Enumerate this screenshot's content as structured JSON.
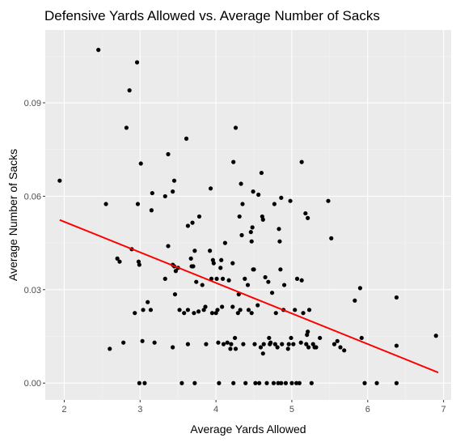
{
  "colors": {
    "panel": "#ebebeb",
    "grid_major": "#ffffff",
    "grid_minor": "#f4f4f4",
    "point": "#000000",
    "trend_line": "#ff0000",
    "tick_text": "#4d4d4d",
    "tick_mark": "#333333"
  },
  "chart_data": {
    "type": "scatter",
    "title": "Defensive Yards Allowed vs. Average Number of Sacks",
    "xlabel": "Average Yards Allowed",
    "ylabel": "Average Number of Sacks",
    "xlim": [
      1.75,
      7.1
    ],
    "ylim": [
      -0.0054,
      0.1134
    ],
    "x_ticks": [
      2,
      3,
      4,
      5,
      6,
      7
    ],
    "x_tick_labels": [
      "2",
      "3",
      "4",
      "5",
      "6",
      "7"
    ],
    "y_ticks": [
      0,
      0.03,
      0.06,
      0.09
    ],
    "y_tick_labels": [
      "0.00",
      "0.03",
      "0.06",
      "0.09"
    ],
    "grid": true,
    "legend": "none",
    "trend_line": {
      "x": [
        1.94,
        6.93
      ],
      "y": [
        0.0524,
        0.0034
      ]
    },
    "points": [
      [
        1.94,
        0.065
      ],
      [
        2.45,
        0.107
      ],
      [
        2.55,
        0.0575
      ],
      [
        2.6,
        0.011
      ],
      [
        2.7,
        0.04
      ],
      [
        2.73,
        0.039
      ],
      [
        2.78,
        0.013
      ],
      [
        2.82,
        0.082
      ],
      [
        2.86,
        0.094
      ],
      [
        2.89,
        0.043
      ],
      [
        2.93,
        0.0225
      ],
      [
        2.96,
        0.103
      ],
      [
        2.97,
        0.0575
      ],
      [
        2.98,
        0.039
      ],
      [
        2.99,
        0.038
      ],
      [
        2.99,
        0.0
      ],
      [
        3.01,
        0.0705
      ],
      [
        3.03,
        0.0135
      ],
      [
        3.04,
        0.0235
      ],
      [
        3.06,
        0.0
      ],
      [
        3.1,
        0.026
      ],
      [
        3.14,
        0.0235
      ],
      [
        3.15,
        0.0555
      ],
      [
        3.16,
        0.061
      ],
      [
        3.19,
        0.013
      ],
      [
        3.33,
        0.06
      ],
      [
        3.33,
        0.0335
      ],
      [
        3.37,
        0.0735
      ],
      [
        3.37,
        0.044
      ],
      [
        3.43,
        0.0615
      ],
      [
        3.43,
        0.0115
      ],
      [
        3.43,
        0.038
      ],
      [
        3.45,
        0.065
      ],
      [
        3.45,
        0.0375
      ],
      [
        3.46,
        0.0285
      ],
      [
        3.47,
        0.036
      ],
      [
        3.5,
        0.037
      ],
      [
        3.52,
        0.0235
      ],
      [
        3.55,
        0.0
      ],
      [
        3.58,
        0.0225
      ],
      [
        3.61,
        0.0785
      ],
      [
        3.63,
        0.0505
      ],
      [
        3.63,
        0.0235
      ],
      [
        3.63,
        0.0125
      ],
      [
        3.67,
        0.04
      ],
      [
        3.68,
        0.0375
      ],
      [
        3.69,
        0.0515
      ],
      [
        3.7,
        0.0375
      ],
      [
        3.71,
        0.0225
      ],
      [
        3.72,
        0.0
      ],
      [
        3.72,
        0.0425
      ],
      [
        3.74,
        0.0325
      ],
      [
        3.77,
        0.023
      ],
      [
        3.78,
        0.0535
      ],
      [
        3.82,
        0.0315
      ],
      [
        3.84,
        0.0235
      ],
      [
        3.86,
        0.0245
      ],
      [
        3.87,
        0.0125
      ],
      [
        3.92,
        0.0425
      ],
      [
        3.93,
        0.0625
      ],
      [
        3.94,
        0.0335
      ],
      [
        3.95,
        0.0225
      ],
      [
        3.96,
        0.0395
      ],
      [
        3.97,
        0.0385
      ],
      [
        4.0,
        0.0225
      ],
      [
        4.01,
        0.0335
      ],
      [
        4.02,
        0.0235
      ],
      [
        4.03,
        0.013
      ],
      [
        4.04,
        0.0
      ],
      [
        4.06,
        0.037
      ],
      [
        4.07,
        0.0395
      ],
      [
        4.08,
        0.0245
      ],
      [
        4.09,
        0.0335
      ],
      [
        4.1,
        0.0125
      ],
      [
        4.12,
        0.045
      ],
      [
        4.15,
        0.013
      ],
      [
        4.17,
        0.033
      ],
      [
        4.19,
        0.011
      ],
      [
        4.2,
        0.0125
      ],
      [
        4.22,
        0.0245
      ],
      [
        4.22,
        0.0385
      ],
      [
        4.23,
        0.0
      ],
      [
        4.23,
        0.071
      ],
      [
        4.25,
        0.0145
      ],
      [
        4.26,
        0.082
      ],
      [
        4.26,
        0.011
      ],
      [
        4.29,
        0.0225
      ],
      [
        4.3,
        0.0285
      ],
      [
        4.31,
        0.0535
      ],
      [
        4.32,
        0.0235
      ],
      [
        4.33,
        0.064
      ],
      [
        4.34,
        0.0475
      ],
      [
        4.35,
        0.0575
      ],
      [
        4.36,
        0.0125
      ],
      [
        4.38,
        0.0335
      ],
      [
        4.39,
        0.0
      ],
      [
        4.42,
        0.0315
      ],
      [
        4.43,
        0.0235
      ],
      [
        4.46,
        0.0485
      ],
      [
        4.47,
        0.0225
      ],
      [
        4.47,
        0.0455
      ],
      [
        4.48,
        0.05
      ],
      [
        4.49,
        0.0365
      ],
      [
        4.49,
        0.0615
      ],
      [
        4.5,
        0.0365
      ],
      [
        4.51,
        0.0125
      ],
      [
        4.52,
        0.0
      ],
      [
        4.55,
        0.025
      ],
      [
        4.56,
        0.0605
      ],
      [
        4.57,
        0.0
      ],
      [
        4.59,
        0.0115
      ],
      [
        4.6,
        0.0675
      ],
      [
        4.61,
        0.0535
      ],
      [
        4.62,
        0.0095
      ],
      [
        4.62,
        0.0525
      ],
      [
        4.63,
        0.0125
      ],
      [
        4.65,
        0.034
      ],
      [
        4.67,
        0.0
      ],
      [
        4.69,
        0.0325
      ],
      [
        4.7,
        0.0145
      ],
      [
        4.71,
        0.0125
      ],
      [
        4.72,
        0.013
      ],
      [
        4.74,
        0.029
      ],
      [
        4.76,
        0.0
      ],
      [
        4.77,
        0.0575
      ],
      [
        4.78,
        0.0125
      ],
      [
        4.79,
        0.0225
      ],
      [
        4.81,
        0.0115
      ],
      [
        4.82,
        0.0
      ],
      [
        4.83,
        0.0495
      ],
      [
        4.84,
        0.0455
      ],
      [
        4.85,
        0.0365
      ],
      [
        4.86,
        0.0
      ]
    ],
    "points_2": [
      [
        4.86,
        0.0595
      ],
      [
        4.87,
        0.0125
      ],
      [
        4.89,
        0.0235
      ],
      [
        4.9,
        0.0315
      ],
      [
        4.92,
        0.0
      ],
      [
        4.95,
        0.011
      ],
      [
        4.96,
        0.0125
      ],
      [
        4.98,
        0.0585
      ],
      [
        4.99,
        0.0145
      ],
      [
        5.0,
        0.0
      ],
      [
        5.02,
        0.0125
      ],
      [
        5.04,
        0.0235
      ],
      [
        5.06,
        0.0
      ],
      [
        5.07,
        0.0335
      ],
      [
        5.1,
        0.0
      ],
      [
        5.12,
        0.013
      ],
      [
        5.13,
        0.071
      ],
      [
        5.13,
        0.033
      ],
      [
        5.15,
        0.0225
      ],
      [
        5.18,
        0.0545
      ],
      [
        5.19,
        0.0125
      ],
      [
        5.2,
        0.0155
      ],
      [
        5.21,
        0.0165
      ],
      [
        5.21,
        0.053
      ],
      [
        5.22,
        0.0115
      ],
      [
        5.23,
        0.0235
      ],
      [
        5.26,
        0.0
      ],
      [
        5.28,
        0.0125
      ],
      [
        5.3,
        0.0115
      ],
      [
        5.32,
        0.0115
      ],
      [
        5.37,
        0.0145
      ],
      [
        5.48,
        0.0585
      ],
      [
        5.52,
        0.0465
      ],
      [
        5.56,
        0.0125
      ],
      [
        5.6,
        0.0135
      ],
      [
        5.64,
        0.0115
      ],
      [
        5.69,
        0.0105
      ],
      [
        5.83,
        0.0265
      ],
      [
        5.9,
        0.0305
      ],
      [
        5.92,
        0.0145
      ],
      [
        5.96,
        0.0
      ],
      [
        6.12,
        0.0
      ],
      [
        6.38,
        0.0275
      ],
      [
        6.38,
        0.012
      ],
      [
        6.38,
        0.0
      ],
      [
        6.9,
        0.0152
      ]
    ]
  }
}
